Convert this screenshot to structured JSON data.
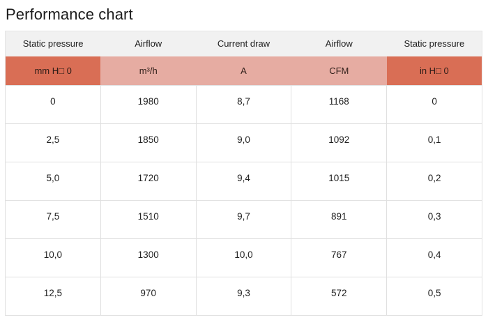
{
  "title": "Performance chart",
  "colors": {
    "header_bg": "#f1f1f1",
    "unit_dark": "#d96e55",
    "unit_light": "#e6aca2",
    "border": "#e0e0e0",
    "text": "#212121"
  },
  "chart_data": {
    "type": "table",
    "title": "Performance chart",
    "column_headers": [
      "Static pressure",
      "Airflow",
      "Current draw",
      "Airflow",
      "Static pressure"
    ],
    "unit_row": [
      "mm H□ 0",
      "m³/h",
      "A",
      "CFM",
      "in H□ 0"
    ],
    "rows": [
      [
        "0",
        "1980",
        "8,7",
        "1168",
        "0"
      ],
      [
        "2,5",
        "1850",
        "9,0",
        "1092",
        "0,1"
      ],
      [
        "5,0",
        "1720",
        "9,4",
        "1015",
        "0,2"
      ],
      [
        "7,5",
        "1510",
        "9,7",
        "891",
        "0,3"
      ],
      [
        "10,0",
        "1300",
        "10,0",
        "767",
        "0,4"
      ],
      [
        "12,5",
        "970",
        "9,3",
        "572",
        "0,5"
      ]
    ]
  }
}
